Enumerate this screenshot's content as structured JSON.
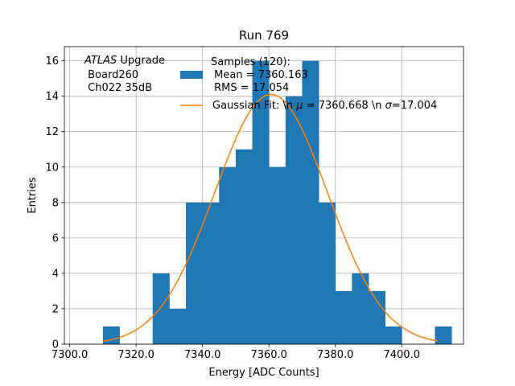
{
  "chart_data": {
    "type": "bar",
    "title": "Run 769",
    "xlabel": "Energy [ADC Counts]",
    "ylabel": "Entries",
    "xlim": [
      7298.4,
      7418.6
    ],
    "ylim": [
      0,
      16.8
    ],
    "grid": true,
    "xticks": [
      7300,
      7320,
      7340,
      7360,
      7380,
      7400
    ],
    "xtick_labels": [
      "7300.0",
      "7320.0",
      "7340.0",
      "7360.0",
      "7380.0",
      "7400.0"
    ],
    "yticks": [
      0,
      2,
      4,
      6,
      8,
      10,
      12,
      14,
      16
    ],
    "ytick_labels": [
      "0",
      "2",
      "4",
      "6",
      "8",
      "10",
      "12",
      "14",
      "16"
    ],
    "bins": [
      {
        "x0": 7310,
        "x1": 7315,
        "count": 1
      },
      {
        "x0": 7315,
        "x1": 7320,
        "count": 0
      },
      {
        "x0": 7320,
        "x1": 7325,
        "count": 0
      },
      {
        "x0": 7325,
        "x1": 7330,
        "count": 4
      },
      {
        "x0": 7330,
        "x1": 7335,
        "count": 2
      },
      {
        "x0": 7335,
        "x1": 7340,
        "count": 8
      },
      {
        "x0": 7340,
        "x1": 7345,
        "count": 8
      },
      {
        "x0": 7345,
        "x1": 7350,
        "count": 10
      },
      {
        "x0": 7350,
        "x1": 7355,
        "count": 11
      },
      {
        "x0": 7355,
        "x1": 7360,
        "count": 16
      },
      {
        "x0": 7360,
        "x1": 7365,
        "count": 10
      },
      {
        "x0": 7365,
        "x1": 7370,
        "count": 14
      },
      {
        "x0": 7370,
        "x1": 7375,
        "count": 16
      },
      {
        "x0": 7375,
        "x1": 7380,
        "count": 8
      },
      {
        "x0": 7380,
        "x1": 7385,
        "count": 3
      },
      {
        "x0": 7385,
        "x1": 7390,
        "count": 4
      },
      {
        "x0": 7390,
        "x1": 7395,
        "count": 3
      },
      {
        "x0": 7395,
        "x1": 7400,
        "count": 1
      },
      {
        "x0": 7400,
        "x1": 7405,
        "count": 0
      },
      {
        "x0": 7405,
        "x1": 7410,
        "count": 0
      },
      {
        "x0": 7410,
        "x1": 7415,
        "count": 1
      }
    ],
    "fit": {
      "type": "gaussian",
      "mu": 7360.668,
      "sigma": 17.004,
      "amplitude": 14.1,
      "x_range": [
        7310,
        7411
      ]
    },
    "series_colors": {
      "histogram": "#1f77b4",
      "fit": "#ff7f0e"
    },
    "legend": {
      "position": "top-right",
      "entries": [
        {
          "kind": "patch",
          "lines": [
            "Samples (120):",
            " Mean = 7360.163",
            " RMS = 17.054"
          ]
        },
        {
          "kind": "line",
          "prefix": "Gaussian Fit: \\n ",
          "mu_symbol": "μ",
          "mid": " = 7360.668 \\n ",
          "sigma_symbol": "σ",
          "suffix": "=17.004"
        }
      ]
    },
    "annotation": {
      "position": "top-left",
      "italic_word": "ATLAS",
      "rest": " Upgrade",
      "lines": [
        " Board260",
        " Ch022 35dB"
      ]
    }
  }
}
